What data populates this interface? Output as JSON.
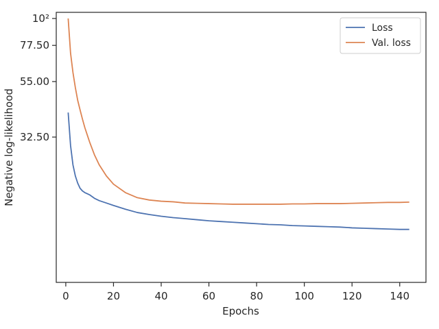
{
  "chart_data": {
    "type": "line",
    "title": "",
    "xlabel": "Epochs",
    "ylabel": "Negative log-likelihood",
    "yscale": "log",
    "grid": false,
    "legend_position": "top-right",
    "xlim": [
      -4,
      151
    ],
    "ylim": [
      8.2,
      106
    ],
    "x_ticks": [
      0,
      20,
      40,
      60,
      80,
      100,
      120,
      140
    ],
    "x_tick_labels": [
      "0",
      "20",
      "40",
      "60",
      "80",
      "100",
      "120",
      "140"
    ],
    "y_ticks": [
      100,
      77.5,
      55,
      32.5
    ],
    "y_tick_labels": [
      "10²",
      "77.50",
      "55.00",
      "32.50"
    ],
    "series": [
      {
        "name": "Loss",
        "color": "#4c72b0",
        "x": [
          1,
          2,
          3,
          4,
          5,
          6,
          7,
          8,
          10,
          12,
          14,
          17,
          20,
          25,
          30,
          35,
          40,
          45,
          50,
          55,
          60,
          65,
          70,
          75,
          80,
          85,
          90,
          95,
          100,
          105,
          110,
          115,
          120,
          125,
          130,
          135,
          140,
          144
        ],
        "y": [
          41,
          30,
          25,
          22.5,
          21,
          20,
          19.5,
          19.2,
          18.8,
          18.2,
          17.8,
          17.4,
          17.0,
          16.4,
          15.9,
          15.6,
          15.35,
          15.15,
          15.0,
          14.85,
          14.7,
          14.6,
          14.5,
          14.4,
          14.3,
          14.2,
          14.15,
          14.05,
          14.0,
          13.95,
          13.9,
          13.85,
          13.75,
          13.7,
          13.65,
          13.6,
          13.55,
          13.55
        ]
      },
      {
        "name": "Val. loss",
        "color": "#dd8452",
        "x": [
          1,
          2,
          3,
          4,
          5,
          6,
          7,
          8,
          10,
          12,
          14,
          17,
          20,
          25,
          30,
          35,
          40,
          45,
          50,
          55,
          60,
          65,
          70,
          75,
          80,
          85,
          90,
          95,
          100,
          105,
          110,
          115,
          120,
          125,
          130,
          135,
          140,
          144
        ],
        "y": [
          100,
          72,
          60,
          52,
          46,
          42,
          38.5,
          35.5,
          31,
          27.5,
          25,
          22.5,
          20.8,
          19.2,
          18.3,
          17.9,
          17.7,
          17.6,
          17.4,
          17.35,
          17.3,
          17.25,
          17.2,
          17.2,
          17.2,
          17.2,
          17.2,
          17.25,
          17.25,
          17.3,
          17.3,
          17.3,
          17.35,
          17.4,
          17.45,
          17.5,
          17.5,
          17.55
        ]
      }
    ]
  }
}
